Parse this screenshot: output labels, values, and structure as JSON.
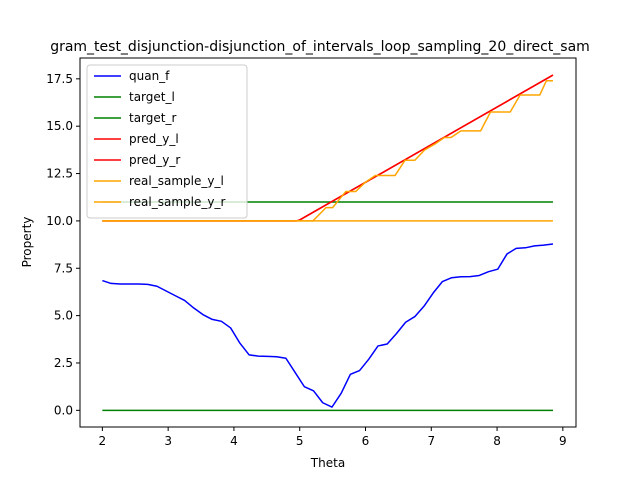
{
  "chart_data": {
    "type": "line",
    "title": "gram_test_disjunction-disjunction_of_intervals_loop_sampling_20_direct_sam",
    "xlabel": "Theta",
    "ylabel": "Property",
    "xlim": [
      1.66,
      9.2
    ],
    "ylim": [
      -0.88,
      18.6
    ],
    "xticks": [
      2,
      3,
      4,
      5,
      6,
      7,
      8,
      9
    ],
    "xtick_labels": [
      "2",
      "3",
      "4",
      "5",
      "6",
      "7",
      "8",
      "9"
    ],
    "yticks": [
      0.0,
      2.5,
      5.0,
      7.5,
      10.0,
      12.5,
      15.0,
      17.5
    ],
    "ytick_labels": [
      "0.0",
      "2.5",
      "5.0",
      "7.5",
      "10.0",
      "12.5",
      "15.0",
      "17.5"
    ],
    "grid": false,
    "legend_position": "top-left",
    "series": [
      {
        "name": "quan_f",
        "color": "#0000ff",
        "x": [
          2.0,
          2.13,
          2.27,
          2.41,
          2.55,
          2.69,
          2.83,
          2.97,
          3.11,
          3.25,
          3.39,
          3.53,
          3.67,
          3.81,
          3.95,
          4.09,
          4.23,
          4.37,
          4.51,
          4.65,
          4.79,
          4.93,
          5.07,
          5.21,
          5.35,
          5.49,
          5.63,
          5.77,
          5.91,
          6.05,
          6.19,
          6.33,
          6.47,
          6.61,
          6.75,
          6.89,
          7.03,
          7.17,
          7.31,
          7.45,
          7.59,
          7.73,
          7.87,
          8.01,
          8.15,
          8.29,
          8.43,
          8.57,
          8.71,
          8.85
        ],
        "y": [
          6.85,
          6.7,
          6.67,
          6.67,
          6.67,
          6.65,
          6.55,
          6.3,
          6.05,
          5.8,
          5.4,
          5.05,
          4.8,
          4.7,
          4.35,
          3.55,
          2.93,
          2.86,
          2.85,
          2.83,
          2.75,
          2.0,
          1.25,
          1.03,
          0.4,
          0.17,
          0.9,
          1.9,
          2.1,
          2.7,
          3.4,
          3.5,
          4.05,
          4.65,
          4.95,
          5.5,
          6.2,
          6.8,
          7.0,
          7.05,
          7.06,
          7.12,
          7.32,
          7.45,
          8.25,
          8.55,
          8.58,
          8.68,
          8.72,
          8.78
        ]
      },
      {
        "name": "target_l",
        "color": "#008000",
        "x": [
          2.0,
          8.85
        ],
        "y": [
          0.0,
          0.0
        ]
      },
      {
        "name": "target_r",
        "color": "#008000",
        "x": [
          2.0,
          8.85
        ],
        "y": [
          11.0,
          11.0
        ]
      },
      {
        "name": "pred_y_l",
        "color": "#ff0000",
        "x": [
          2.0,
          4.95,
          5.0,
          8.85
        ],
        "y": [
          10.0,
          10.0,
          10.05,
          17.7
        ]
      },
      {
        "name": "pred_y_r",
        "color": "#ff0000",
        "x": [
          2.0,
          4.95,
          5.0,
          8.85
        ],
        "y": [
          10.0,
          10.0,
          10.05,
          17.7
        ]
      },
      {
        "name": "real_sample_y_l",
        "color": "#ffa500",
        "x": [
          2.0,
          5.2,
          5.4,
          5.5,
          5.7,
          5.85,
          6.0,
          6.15,
          6.3,
          6.45,
          6.6,
          6.75,
          6.9,
          7.05,
          7.2,
          7.3,
          7.45,
          7.6,
          7.75,
          7.9,
          8.1,
          8.2,
          8.35,
          8.5,
          8.65,
          8.75,
          8.85
        ],
        "y": [
          10.0,
          10.0,
          10.7,
          10.7,
          11.55,
          11.55,
          12.05,
          12.4,
          12.4,
          12.4,
          13.2,
          13.2,
          13.75,
          14.05,
          14.4,
          14.4,
          14.75,
          14.75,
          14.75,
          15.75,
          15.75,
          15.75,
          16.65,
          16.65,
          16.65,
          17.4,
          17.4
        ]
      },
      {
        "name": "real_sample_y_r",
        "color": "#ffa500",
        "x": [
          2.0,
          8.85
        ],
        "y": [
          10.0,
          10.0
        ]
      }
    ]
  }
}
